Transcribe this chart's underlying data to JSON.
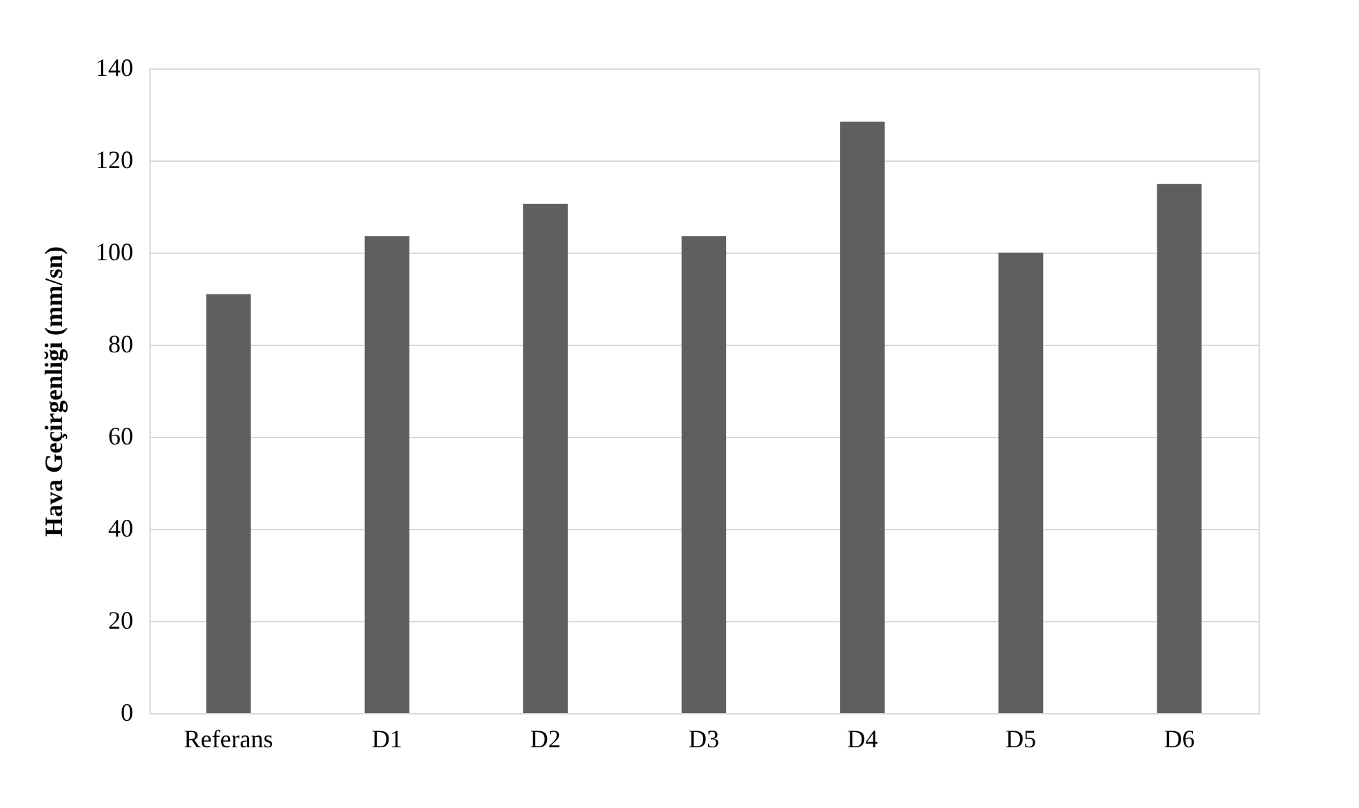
{
  "chart_data": {
    "type": "bar",
    "ylabel": "Hava Geçirgenliği (mm/sn)",
    "categories": [
      "Referans",
      "D1",
      "D2",
      "D3",
      "D4",
      "D5",
      "D6"
    ],
    "values": [
      91,
      103.6,
      110.6,
      103.6,
      128.4,
      100,
      114.9
    ],
    "color": "#5f5f5f",
    "ylim": [
      0,
      140
    ],
    "yticks": [
      0,
      20,
      40,
      60,
      80,
      100,
      120,
      140
    ],
    "grid": "y"
  }
}
